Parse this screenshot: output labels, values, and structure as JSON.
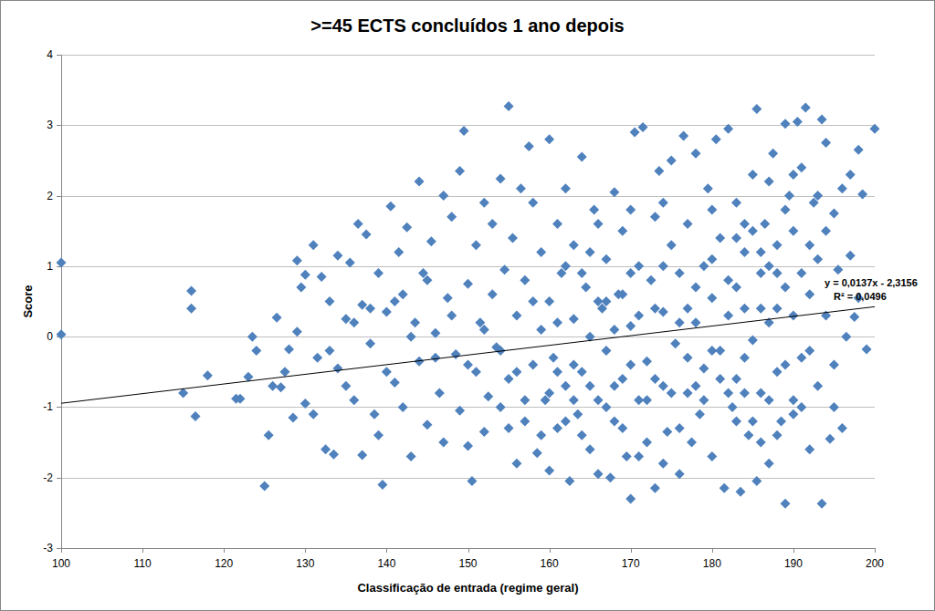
{
  "chart_data": {
    "type": "scatter",
    "title": ">=45 ECTS concluídos 1 ano depois",
    "x_label": "Classificação de entrada (regime geral)",
    "y_label": "Score",
    "xlim": [
      100,
      200
    ],
    "ylim": [
      -3,
      4
    ],
    "xticks": [
      100,
      110,
      120,
      130,
      140,
      150,
      160,
      170,
      180,
      190,
      200
    ],
    "yticks": [
      -3,
      -2,
      -1,
      0,
      1,
      2,
      3,
      4
    ],
    "grid": true,
    "color": "#4f81bd",
    "marker": "diamond",
    "trendline": {
      "slope": 0.0137,
      "intercept": -2.3156,
      "equation_label": "y = 0,0137x - 2,3156",
      "r2_label": "R² = 0,0496"
    },
    "x": [
      100,
      100,
      115,
      116,
      116,
      116.5,
      118,
      121.5,
      122,
      123,
      123.5,
      124,
      125,
      125.5,
      126,
      126.5,
      127,
      127.5,
      128,
      128.5,
      129,
      129,
      129.5,
      130,
      130,
      131,
      131,
      131.5,
      132,
      132.5,
      133,
      133.5,
      134,
      134,
      135,
      135.5,
      136,
      136.5,
      137,
      137,
      137.5,
      138,
      138.5,
      139,
      139,
      139.5,
      140,
      140.5,
      141,
      141.5,
      142,
      142,
      142.5,
      143,
      143.5,
      144,
      144,
      144.5,
      145,
      145.5,
      146,
      146.5,
      147,
      147,
      147.5,
      148,
      148.5,
      149,
      149,
      149.5,
      150,
      150,
      150.5,
      151,
      151,
      151.5,
      152,
      152,
      152.5,
      153,
      153,
      153.5,
      154,
      154,
      154.5,
      155,
      155,
      155.5,
      156,
      156,
      156.5,
      157,
      157,
      157.5,
      158,
      158,
      158.5,
      159,
      159,
      159.5,
      160,
      160,
      160,
      160.5,
      161,
      161,
      161.5,
      162,
      162,
      162.5,
      163,
      163,
      163.5,
      164,
      164,
      164.5,
      165,
      165,
      165.5,
      166,
      166,
      166.5,
      167,
      167,
      167.5,
      168,
      168,
      168.5,
      169,
      169,
      169.5,
      170,
      170,
      170.5,
      171,
      171,
      171.5,
      172,
      172,
      172.5,
      173,
      173,
      173.5,
      174,
      174,
      174.5,
      175,
      175,
      175.5,
      176,
      176,
      176.5,
      177,
      177,
      177.5,
      178,
      178,
      178.5,
      179,
      179,
      179.5,
      180,
      180,
      180.5,
      181,
      181,
      181.5,
      182,
      182,
      182.5,
      183,
      183,
      183.5,
      184,
      184,
      184.5,
      185,
      185,
      185.5,
      185.5,
      186,
      186,
      186.5,
      187,
      187,
      187.5,
      188,
      188,
      188.5,
      189,
      189,
      189,
      189.5,
      190,
      190,
      190.5,
      191,
      191,
      191.5,
      192,
      192,
      192.5,
      193,
      193,
      193.5,
      193.5,
      194,
      194,
      194.5,
      195,
      195,
      195.5,
      196,
      196,
      196.5,
      197,
      197,
      197.5,
      198,
      198,
      198.5,
      199,
      200,
      160,
      161,
      162,
      163,
      164,
      165,
      166,
      167,
      168,
      169,
      170,
      171,
      172,
      173,
      174,
      175,
      176,
      177,
      178,
      179,
      180,
      181,
      182,
      183,
      184,
      185,
      186,
      187,
      188,
      189,
      190,
      187,
      185,
      184,
      186,
      183,
      188,
      190,
      191,
      192,
      176,
      173,
      170,
      168,
      165,
      163,
      158,
      156,
      154,
      152,
      150,
      148,
      146,
      145,
      143,
      141,
      140,
      138,
      136,
      135,
      133,
      155,
      157,
      159,
      161,
      164,
      167,
      169,
      171,
      174,
      177,
      178,
      180,
      182,
      184,
      186,
      188,
      189,
      191,
      192,
      194,
      195,
      162,
      166,
      170,
      174,
      180,
      183,
      187,
      190,
      193
    ],
    "values": [
      1.05,
      0.03,
      -0.8,
      0.65,
      0.4,
      -1.13,
      -0.55,
      -0.88,
      -0.88,
      -0.57,
      0,
      -0.2,
      -2.12,
      -1.4,
      -0.7,
      0.27,
      -0.72,
      -0.5,
      -0.18,
      -1.15,
      0.07,
      1.08,
      0.7,
      0.88,
      -0.95,
      1.3,
      -1.1,
      -0.3,
      0.85,
      -1.6,
      0.5,
      -1.67,
      1.15,
      -0.45,
      0.25,
      1.05,
      -0.9,
      1.6,
      0.45,
      -1.68,
      1.45,
      -0.1,
      -1.1,
      0.9,
      -1.4,
      -2.1,
      0.35,
      1.85,
      -0.65,
      1.2,
      -1.0,
      0.6,
      1.55,
      -1.7,
      0.2,
      2.2,
      -0.35,
      0.9,
      -1.25,
      1.35,
      0.05,
      -0.8,
      2.0,
      -1.5,
      0.55,
      1.7,
      -0.25,
      2.35,
      -1.05,
      2.92,
      0.75,
      -1.55,
      -2.05,
      1.3,
      -0.5,
      0.2,
      1.9,
      -1.35,
      -0.85,
      0.6,
      1.6,
      -0.15,
      2.24,
      -1.0,
      0.95,
      3.27,
      -0.6,
      1.4,
      -1.8,
      0.3,
      2.1,
      -1.2,
      0.8,
      2.7,
      -0.4,
      1.9,
      -1.65,
      0.1,
      1.2,
      -0.9,
      2.8,
      -1.9,
      0.5,
      -0.3,
      1.6,
      -1.3,
      0.9,
      -0.7,
      2.1,
      -2.05,
      0.25,
      1.3,
      -1.1,
      -0.5,
      2.55,
      0.7,
      -1.6,
      0.0,
      1.8,
      -0.9,
      -1.95,
      0.4,
      1.1,
      -0.2,
      -2.0,
      2.05,
      -1.2,
      0.6,
      -0.6,
      1.5,
      -1.7,
      0.15,
      -2.3,
      2.9,
      -0.9,
      1.0,
      2.97,
      -0.35,
      -1.5,
      0.8,
      1.7,
      -2.15,
      2.35,
      -0.7,
      0.35,
      -1.35,
      1.3,
      2.5,
      -0.1,
      -1.95,
      0.9,
      2.85,
      -0.8,
      1.6,
      -1.5,
      0.2,
      2.6,
      -1.1,
      1.0,
      -0.45,
      2.1,
      -1.7,
      0.55,
      2.8,
      -0.2,
      1.4,
      -2.15,
      0.8,
      2.95,
      -1.0,
      -0.6,
      1.9,
      -2.2,
      0.4,
      1.2,
      -1.4,
      -0.05,
      2.3,
      -2.05,
      3.23,
      0.9,
      -0.8,
      1.6,
      -1.8,
      0.2,
      2.6,
      -0.5,
      1.3,
      -1.2,
      3.02,
      -2.37,
      0.7,
      2.0,
      -0.9,
      1.5,
      3.05,
      -0.3,
      2.4,
      3.25,
      0.6,
      -1.6,
      1.9,
      -0.7,
      1.1,
      -2.37,
      3.08,
      0.3,
      2.75,
      -1.45,
      1.75,
      -0.4,
      0.95,
      2.1,
      -1.3,
      0.0,
      1.15,
      2.3,
      0.28,
      2.65,
      0.55,
      2.02,
      -0.18,
      2.95,
      -0.8,
      0.2,
      -1.2,
      -0.4,
      0.9,
      -0.7,
      0.5,
      -1.0,
      0.1,
      0.6,
      -0.4,
      0.3,
      -0.9,
      0.4,
      1.0,
      -0.8,
      0.2,
      -0.3,
      0.7,
      -0.9,
      1.1,
      -0.6,
      0.3,
      -1.2,
      -0.3,
      1.5,
      0.4,
      -0.9,
      0.9,
      -0.4,
      0.3,
      1.0,
      -1.2,
      1.6,
      -1.5,
      0.7,
      -1.4,
      -1.1,
      0.9,
      1.3,
      -1.3,
      -0.6,
      0.9,
      -0.7,
      1.2,
      -0.9,
      0.5,
      -0.5,
      -0.2,
      0.1,
      -0.4,
      0.3,
      -0.3,
      0.8,
      0.0,
      0.5,
      -0.5,
      0.4,
      0.2,
      -0.7,
      -0.2,
      -1.3,
      -0.9,
      -1.4,
      -0.5,
      -1.4,
      0.5,
      -1.3,
      -1.7,
      -1.8,
      0.4,
      -0.7,
      -0.2,
      -0.8,
      -0.8,
      1.2,
      0.4,
      1.8,
      -1.0,
      -0.2,
      1.5,
      -1.0,
      1.0,
      1.6,
      1.8,
      1.9,
      1.8,
      1.4,
      2.2,
      2.3,
      2.0
    ]
  }
}
